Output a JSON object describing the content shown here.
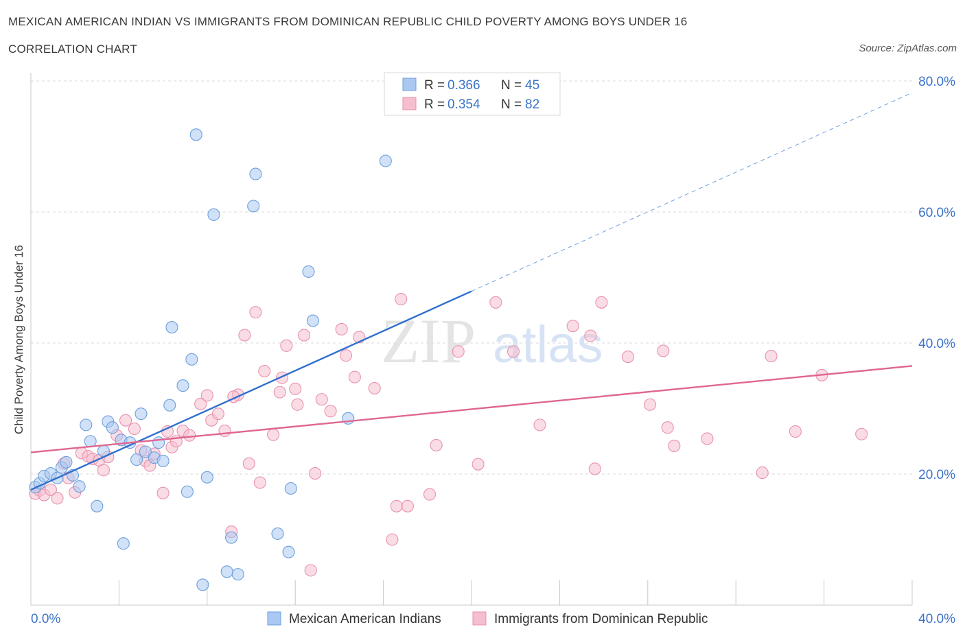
{
  "header": {
    "title": "MEXICAN AMERICAN INDIAN VS IMMIGRANTS FROM DOMINICAN REPUBLIC CHILD POVERTY AMONG BOYS UNDER 16",
    "subtitle": "CORRELATION CHART",
    "source": "Source: ZipAtlas.com"
  },
  "watermark": {
    "zip": "ZIP",
    "atlas": "atlas"
  },
  "stats_legend": {
    "r_label": "R =",
    "n_label": "N =",
    "rows": [
      {
        "r": "0.366",
        "n": "45"
      },
      {
        "r": "0.354",
        "n": "82"
      }
    ]
  },
  "colors": {
    "blue_fill": "#a9c8f2",
    "blue_stroke": "#6d9fdc",
    "blue_line": "#2f6fce",
    "pink_fill": "#f6bfd0",
    "pink_stroke": "#e892ae",
    "pink_line": "#e0668f",
    "value_text": "#3b73c9",
    "grid": "#d8d8d8"
  },
  "chart_data": {
    "type": "scatter",
    "title": "MEXICAN AMERICAN INDIAN VS IMMIGRANTS FROM DOMINICAN REPUBLIC CHILD POVERTY AMONG BOYS UNDER 16",
    "subtitle": "CORRELATION CHART",
    "xlabel": "",
    "ylabel": "Child Poverty Among Boys Under 16",
    "xlim": [
      0,
      40
    ],
    "ylim": [
      0,
      80
    ],
    "x_tick_labels": [
      "0.0%",
      "40.0%"
    ],
    "y_tick_labels": [
      "20.0%",
      "40.0%",
      "60.0%",
      "80.0%"
    ],
    "y_ticks": [
      20,
      40,
      60,
      80
    ],
    "grid": true,
    "legend_position": "bottom",
    "series": [
      {
        "name": "Mexican American Indians",
        "color": "#a9c8f2",
        "r": 0.366,
        "n": 45,
        "trend": {
          "x0": 0,
          "y0": 17.6,
          "x1": 20,
          "y1": 47.9,
          "extended_to": {
            "x": 40,
            "y": 78.2
          }
        },
        "points": [
          [
            0.2,
            18.0
          ],
          [
            0.4,
            18.6
          ],
          [
            0.6,
            19.7
          ],
          [
            0.9,
            20.1
          ],
          [
            1.2,
            19.4
          ],
          [
            1.4,
            21.0
          ],
          [
            1.6,
            21.8
          ],
          [
            1.9,
            19.8
          ],
          [
            2.2,
            18.1
          ],
          [
            2.5,
            27.5
          ],
          [
            2.7,
            25.0
          ],
          [
            3.0,
            15.1
          ],
          [
            3.3,
            23.5
          ],
          [
            3.5,
            28.0
          ],
          [
            3.7,
            27.1
          ],
          [
            4.1,
            25.2
          ],
          [
            4.2,
            9.4
          ],
          [
            4.5,
            24.8
          ],
          [
            4.8,
            22.2
          ],
          [
            5.0,
            29.2
          ],
          [
            5.2,
            23.4
          ],
          [
            5.6,
            22.5
          ],
          [
            5.8,
            24.8
          ],
          [
            6.0,
            22.0
          ],
          [
            6.3,
            30.5
          ],
          [
            6.4,
            42.4
          ],
          [
            6.9,
            33.5
          ],
          [
            7.1,
            17.3
          ],
          [
            7.3,
            37.5
          ],
          [
            7.5,
            71.8
          ],
          [
            7.8,
            3.1
          ],
          [
            8.0,
            19.5
          ],
          [
            8.3,
            59.6
          ],
          [
            8.9,
            5.1
          ],
          [
            9.1,
            10.3
          ],
          [
            9.4,
            4.7
          ],
          [
            10.1,
            60.9
          ],
          [
            10.2,
            65.8
          ],
          [
            11.2,
            10.9
          ],
          [
            11.7,
            8.1
          ],
          [
            11.8,
            17.8
          ],
          [
            12.6,
            50.9
          ],
          [
            12.8,
            43.4
          ],
          [
            14.4,
            28.5
          ],
          [
            16.1,
            67.8
          ]
        ]
      },
      {
        "name": "Immigrants from Dominican Republic",
        "color": "#f6bfd0",
        "r": 0.354,
        "n": 82,
        "trend": {
          "x0": 0,
          "y0": 23.3,
          "x1": 40,
          "y1": 36.5
        },
        "points": [
          [
            0.2,
            17.0
          ],
          [
            0.4,
            17.5
          ],
          [
            0.6,
            16.8
          ],
          [
            0.9,
            17.6
          ],
          [
            1.2,
            16.3
          ],
          [
            1.5,
            21.6
          ],
          [
            1.7,
            19.4
          ],
          [
            2.0,
            17.2
          ],
          [
            2.3,
            23.2
          ],
          [
            2.6,
            22.7
          ],
          [
            2.8,
            22.3
          ],
          [
            3.1,
            22.1
          ],
          [
            3.3,
            20.6
          ],
          [
            3.5,
            22.6
          ],
          [
            3.9,
            25.9
          ],
          [
            4.3,
            28.2
          ],
          [
            4.7,
            26.9
          ],
          [
            5.0,
            23.6
          ],
          [
            5.2,
            22.0
          ],
          [
            5.6,
            23.1
          ],
          [
            6.0,
            17.1
          ],
          [
            6.2,
            26.5
          ],
          [
            6.4,
            24.1
          ],
          [
            6.6,
            25.0
          ],
          [
            6.9,
            26.6
          ],
          [
            7.2,
            25.9
          ],
          [
            7.7,
            30.7
          ],
          [
            8.0,
            32.0
          ],
          [
            8.2,
            28.2
          ],
          [
            8.5,
            29.2
          ],
          [
            8.8,
            26.6
          ],
          [
            9.1,
            11.2
          ],
          [
            9.4,
            32.1
          ],
          [
            9.7,
            41.2
          ],
          [
            9.9,
            21.6
          ],
          [
            10.2,
            44.7
          ],
          [
            10.4,
            18.7
          ],
          [
            10.6,
            35.7
          ],
          [
            11.0,
            26.0
          ],
          [
            11.3,
            32.5
          ],
          [
            11.4,
            34.7
          ],
          [
            11.6,
            39.6
          ],
          [
            12.0,
            33.0
          ],
          [
            12.1,
            30.6
          ],
          [
            12.4,
            41.2
          ],
          [
            12.7,
            5.3
          ],
          [
            12.9,
            20.1
          ],
          [
            13.2,
            31.4
          ],
          [
            13.6,
            29.6
          ],
          [
            14.1,
            42.1
          ],
          [
            14.3,
            38.1
          ],
          [
            14.7,
            34.8
          ],
          [
            14.9,
            40.9
          ],
          [
            15.6,
            33.1
          ],
          [
            16.4,
            10.0
          ],
          [
            16.6,
            15.1
          ],
          [
            16.8,
            46.7
          ],
          [
            17.1,
            15.1
          ],
          [
            18.1,
            16.9
          ],
          [
            18.4,
            24.4
          ],
          [
            19.4,
            38.7
          ],
          [
            20.3,
            21.5
          ],
          [
            21.1,
            46.2
          ],
          [
            21.9,
            38.7
          ],
          [
            23.1,
            27.5
          ],
          [
            24.6,
            42.6
          ],
          [
            25.4,
            41.1
          ],
          [
            25.6,
            20.8
          ],
          [
            25.9,
            46.2
          ],
          [
            27.1,
            37.9
          ],
          [
            28.1,
            30.6
          ],
          [
            28.7,
            38.8
          ],
          [
            28.9,
            27.1
          ],
          [
            29.2,
            24.3
          ],
          [
            30.7,
            25.4
          ],
          [
            33.2,
            20.2
          ],
          [
            33.6,
            38.0
          ],
          [
            34.7,
            26.5
          ],
          [
            35.9,
            35.1
          ],
          [
            37.7,
            26.1
          ],
          [
            9.2,
            31.8
          ],
          [
            5.4,
            21.3
          ]
        ]
      }
    ]
  }
}
